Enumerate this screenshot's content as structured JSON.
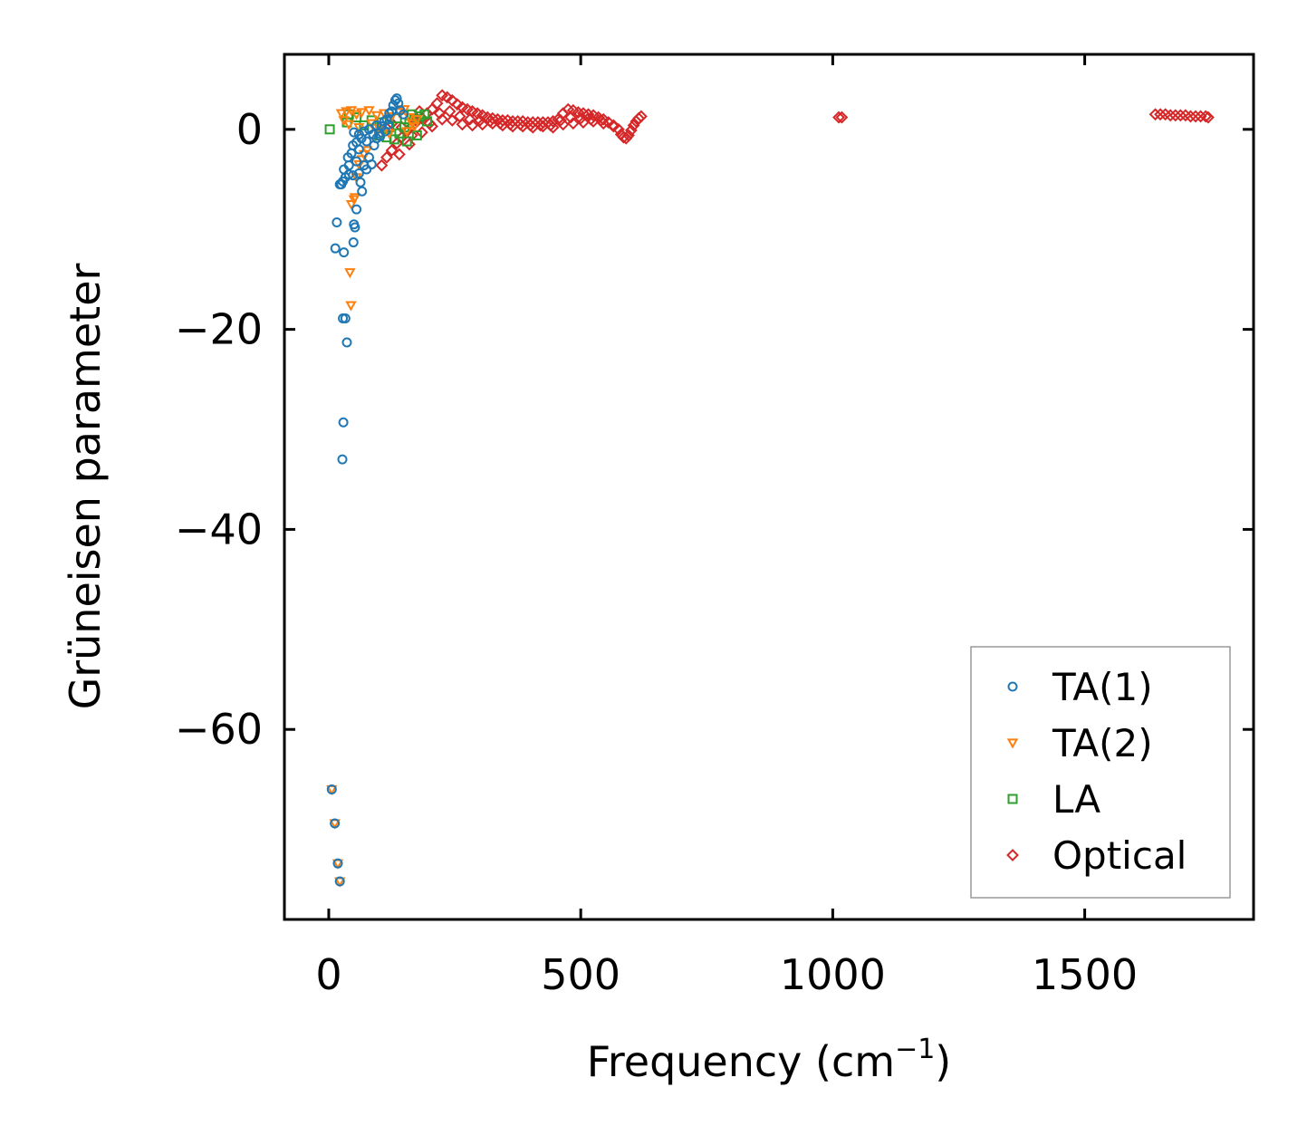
{
  "chart_data": {
    "type": "scatter",
    "title": "",
    "xlabel": "Frequency (cm",
    "xlabel_sup": "−1",
    "xlabel_close": ")",
    "ylabel": "Grüneisen parameter",
    "xlim": [
      -88,
      1835
    ],
    "ylim": [
      -79,
      7.5
    ],
    "xticks": [
      0,
      500,
      1000,
      1500
    ],
    "xtick_labels": [
      "0",
      "500",
      "1000",
      "1500"
    ],
    "yticks": [
      0,
      -20,
      -40,
      -60
    ],
    "ytick_labels": [
      "0",
      "−20",
      "−40",
      "−60"
    ],
    "legend_position": "lower-right",
    "series": [
      {
        "name": "TA(1)",
        "marker": "circle",
        "color": "#1f77b4",
        "points": [
          [
            6,
            -66
          ],
          [
            12,
            -69.4
          ],
          [
            18,
            -73.4
          ],
          [
            22,
            -75.2
          ],
          [
            27,
            -33
          ],
          [
            29,
            -29.3
          ],
          [
            36,
            -21.3
          ],
          [
            28,
            -18.9
          ],
          [
            33,
            -18.9
          ],
          [
            13,
            -11.9
          ],
          [
            30,
            -12.3
          ],
          [
            49,
            -11.3
          ],
          [
            16,
            -9.3
          ],
          [
            50,
            -9.5
          ],
          [
            52,
            -9.8
          ],
          [
            55,
            -8
          ],
          [
            22,
            -5.5
          ],
          [
            25,
            -5.5
          ],
          [
            28,
            -5.2
          ],
          [
            33,
            -4.8
          ],
          [
            40,
            -4.5
          ],
          [
            48,
            -4.6
          ],
          [
            60,
            -4.4
          ],
          [
            63,
            -5.3
          ],
          [
            66,
            -6.2
          ],
          [
            30,
            -4
          ],
          [
            40,
            -3.6
          ],
          [
            55,
            -3.2
          ],
          [
            70,
            -3.6
          ],
          [
            75,
            -4
          ],
          [
            38,
            -2.8
          ],
          [
            45,
            -2.4
          ],
          [
            60,
            -2
          ],
          [
            80,
            -2.8
          ],
          [
            85,
            -3.5
          ],
          [
            48,
            -1.6
          ],
          [
            55,
            -1.3
          ],
          [
            65,
            -0.9
          ],
          [
            90,
            -1.6
          ],
          [
            95,
            -0.9
          ],
          [
            50,
            -0.3
          ],
          [
            60,
            -0.5
          ],
          [
            70,
            -0.2
          ],
          [
            80,
            0
          ],
          [
            100,
            -0.4
          ],
          [
            105,
            0.3
          ],
          [
            110,
            0.8
          ],
          [
            115,
            1
          ],
          [
            120,
            1.6
          ],
          [
            125,
            1.8
          ],
          [
            128,
            2.4
          ],
          [
            132,
            2.9
          ],
          [
            135,
            3.1
          ],
          [
            138,
            2.6
          ],
          [
            142,
            1.9
          ],
          [
            148,
            1.5
          ],
          [
            118,
            0.5
          ],
          [
            102,
            -0.7
          ],
          [
            88,
            -0.5
          ],
          [
            75,
            -1.2
          ],
          [
            95,
            0.4
          ],
          [
            112,
            -0.2
          ]
        ]
      },
      {
        "name": "TA(2)",
        "marker": "triangle",
        "color": "#ff7f0e",
        "points": [
          [
            6,
            -66
          ],
          [
            12,
            -69.4
          ],
          [
            18,
            -73.4
          ],
          [
            22,
            -75.2
          ],
          [
            44,
            -17.6
          ],
          [
            42,
            -14.3
          ],
          [
            45,
            -7.5
          ],
          [
            50,
            -7
          ],
          [
            52,
            -6.8
          ],
          [
            55,
            -4.8
          ],
          [
            60,
            -3.5
          ],
          [
            66,
            -3
          ],
          [
            70,
            -2.5
          ],
          [
            76,
            -2.1
          ],
          [
            25,
            1.6
          ],
          [
            35,
            1.8
          ],
          [
            45,
            1.9
          ],
          [
            55,
            1.5
          ],
          [
            65,
            1.7
          ],
          [
            80,
            1.9
          ],
          [
            95,
            1.4
          ],
          [
            110,
            1.6
          ],
          [
            125,
            1.3
          ],
          [
            140,
            1.7
          ],
          [
            150,
            2
          ],
          [
            160,
            1.2
          ],
          [
            165,
            0.6
          ],
          [
            155,
            -0.2
          ],
          [
            30,
            0.9
          ],
          [
            40,
            0.5
          ],
          [
            60,
            0.2
          ],
          [
            85,
            0.6
          ],
          [
            100,
            0.1
          ],
          [
            120,
            -0.4
          ],
          [
            170,
            0.3
          ],
          [
            175,
            1
          ]
        ]
      },
      {
        "name": "LA",
        "marker": "square",
        "color": "#2ca02c",
        "points": [
          [
            2,
            0
          ],
          [
            36,
            0.7
          ],
          [
            40,
            1.5
          ],
          [
            55,
            1.2
          ],
          [
            70,
            0.4
          ],
          [
            85,
            0.9
          ],
          [
            100,
            -0.6
          ],
          [
            115,
            -0.8
          ],
          [
            130,
            -1
          ],
          [
            140,
            -0.4
          ],
          [
            150,
            0.2
          ],
          [
            160,
            0.6
          ],
          [
            170,
            1
          ],
          [
            180,
            1.3
          ],
          [
            190,
            1.5
          ],
          [
            195,
            0.8
          ],
          [
            175,
            -0.6
          ],
          [
            155,
            -1.2
          ],
          [
            120,
            0.2
          ],
          [
            105,
            0.7
          ],
          [
            135,
            1.1
          ],
          [
            165,
            1.5
          ]
        ]
      },
      {
        "name": "Optical",
        "marker": "diamond",
        "color": "#d62728",
        "points": [
          [
            105,
            -3.6
          ],
          [
            115,
            -2.8
          ],
          [
            125,
            -2.1
          ],
          [
            135,
            -1.4
          ],
          [
            145,
            -0.8
          ],
          [
            155,
            -0.2
          ],
          [
            165,
            0.3
          ],
          [
            175,
            0.8
          ],
          [
            185,
            1.1
          ],
          [
            195,
            1.6
          ],
          [
            205,
            2
          ],
          [
            215,
            2.6
          ],
          [
            225,
            3.4
          ],
          [
            235,
            3.2
          ],
          [
            245,
            2.9
          ],
          [
            255,
            2.5
          ],
          [
            265,
            2.2
          ],
          [
            275,
            2
          ],
          [
            285,
            1.8
          ],
          [
            295,
            1.6
          ],
          [
            305,
            1.4
          ],
          [
            315,
            1.2
          ],
          [
            325,
            1.1
          ],
          [
            335,
            1
          ],
          [
            345,
            0.9
          ],
          [
            355,
            0.9
          ],
          [
            365,
            0.8
          ],
          [
            375,
            0.8
          ],
          [
            385,
            0.8
          ],
          [
            395,
            0.7
          ],
          [
            405,
            0.7
          ],
          [
            415,
            0.7
          ],
          [
            425,
            0.7
          ],
          [
            435,
            0.7
          ],
          [
            445,
            0.8
          ],
          [
            455,
            1
          ],
          [
            465,
            1.6
          ],
          [
            475,
            2
          ],
          [
            485,
            1.9
          ],
          [
            495,
            1.7
          ],
          [
            505,
            1.6
          ],
          [
            515,
            1.5
          ],
          [
            525,
            1.4
          ],
          [
            535,
            1.2
          ],
          [
            545,
            1
          ],
          [
            555,
            0.7
          ],
          [
            565,
            0.4
          ],
          [
            575,
            0
          ],
          [
            580,
            -0.5
          ],
          [
            585,
            -0.8
          ],
          [
            590,
            -0.9
          ],
          [
            595,
            -0.6
          ],
          [
            600,
            -0.1
          ],
          [
            605,
            0.4
          ],
          [
            610,
            0.8
          ],
          [
            615,
            1.1
          ],
          [
            620,
            1.3
          ],
          [
            125,
            0.6
          ],
          [
            145,
            0.2
          ],
          [
            165,
            -0.6
          ],
          [
            185,
            -0.3
          ],
          [
            205,
            0.3
          ],
          [
            225,
            1
          ],
          [
            245,
            0.9
          ],
          [
            265,
            0.5
          ],
          [
            285,
            0.4
          ],
          [
            305,
            0.5
          ],
          [
            325,
            0.6
          ],
          [
            345,
            0.4
          ],
          [
            365,
            0.3
          ],
          [
            385,
            0.3
          ],
          [
            405,
            0.2
          ],
          [
            425,
            0.3
          ],
          [
            445,
            0.2
          ],
          [
            465,
            0.5
          ],
          [
            485,
            0.6
          ],
          [
            505,
            0.7
          ],
          [
            525,
            0.8
          ],
          [
            545,
            0.6
          ],
          [
            565,
            0.3
          ],
          [
            140,
            -2.5
          ],
          [
            160,
            -1.5
          ],
          [
            180,
            1.8
          ],
          [
            200,
            0.6
          ],
          [
            220,
            1.6
          ],
          [
            240,
            1.8
          ],
          [
            260,
            1.3
          ],
          [
            280,
            1
          ],
          [
            300,
            0.9
          ],
          [
            320,
            0.8
          ],
          [
            340,
            0.6
          ],
          [
            360,
            0.5
          ],
          [
            380,
            0.5
          ],
          [
            400,
            0.4
          ],
          [
            420,
            0.4
          ],
          [
            440,
            0.4
          ],
          [
            460,
            0.9
          ],
          [
            480,
            1.2
          ],
          [
            500,
            1.1
          ],
          [
            520,
            1
          ],
          [
            540,
            0.9
          ],
          [
            1012,
            1.2
          ],
          [
            1018,
            1.2
          ],
          [
            1640,
            1.5
          ],
          [
            1650,
            1.5
          ],
          [
            1660,
            1.5
          ],
          [
            1670,
            1.4
          ],
          [
            1680,
            1.4
          ],
          [
            1690,
            1.4
          ],
          [
            1700,
            1.4
          ],
          [
            1710,
            1.3
          ],
          [
            1720,
            1.3
          ],
          [
            1730,
            1.3
          ],
          [
            1740,
            1.3
          ],
          [
            1745,
            1.2
          ]
        ]
      }
    ]
  }
}
